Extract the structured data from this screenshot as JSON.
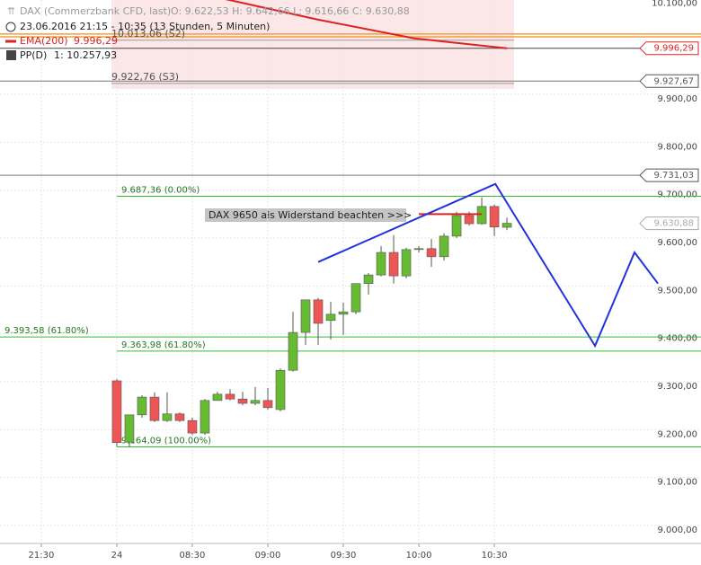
{
  "chart_data": {
    "type": "candlestick",
    "legend": {
      "instrument": "DAX (Commerzbank CFD, last)",
      "ohlc": "O: 9.622,53  H: 9.642,66  L: 9.616,66  C: 9.630,88",
      "period": "23.06.2016 21:15 - 10:35 (13 Stunden, 5 Minuten)",
      "ema_name": "EMA(200)",
      "ema_value": "9.996,29",
      "pp_name": "PP(D)",
      "pp_value": "1: 10.257,93"
    },
    "annotation": "DAX 9650 als Widerstand beachten >>>",
    "xlim": [
      -46.4,
      232.1
    ],
    "ylim": [
      8962.5,
      10097
    ],
    "xticks": [
      {
        "value": -30,
        "label": "21:30"
      },
      {
        "value": 0,
        "label": "24"
      },
      {
        "value": 30,
        "label": "08:30"
      },
      {
        "value": 60,
        "label": "09:00"
      },
      {
        "value": 90,
        "label": "09:30"
      },
      {
        "value": 120,
        "label": "10:00"
      },
      {
        "value": 150,
        "label": "10:30"
      }
    ],
    "yticks": [
      {
        "value": 9000,
        "label": "9.000,00"
      },
      {
        "value": 9100,
        "label": "9.100,00"
      },
      {
        "value": 9200,
        "label": "9.200,00"
      },
      {
        "value": 9300,
        "label": "9.300,00"
      },
      {
        "value": 9400,
        "label": "9.400,00"
      },
      {
        "value": 9500,
        "label": "9.500,00"
      },
      {
        "value": 9600,
        "label": "9.600,00"
      },
      {
        "value": 9700,
        "label": "9.700,00"
      },
      {
        "value": 9800,
        "label": "9.800,00"
      },
      {
        "value": 9900,
        "label": "9.900,00"
      },
      {
        "value": 10100,
        "label": "10.100,00"
      }
    ],
    "x": [
      0,
      5,
      10,
      15,
      20,
      25,
      30,
      35,
      40,
      45,
      50,
      55,
      60,
      65,
      70,
      75,
      80,
      85,
      90,
      95,
      100,
      105,
      110,
      115,
      120,
      125,
      130,
      135,
      140,
      145,
      150,
      155
    ],
    "open": [
      9302,
      9174,
      9231,
      9268,
      9219,
      9233,
      9219,
      9193,
      9261,
      9274,
      9264,
      9255,
      9261,
      9242,
      9324,
      9403,
      9471,
      9428,
      9441,
      9446,
      9505,
      9523,
      9570,
      9521,
      9576,
      9578,
      9561,
      9604,
      9647,
      9630,
      9666,
      9622.53
    ],
    "high": [
      9306,
      9231,
      9272,
      9278,
      9278,
      9236,
      9225,
      9264,
      9279,
      9285,
      9279,
      9289,
      9287,
      9328,
      9446,
      9471,
      9475,
      9467,
      9465,
      9505,
      9527,
      9583,
      9606,
      9580,
      9583,
      9598,
      9610,
      9655,
      9655,
      9685,
      9670,
      9642.66
    ],
    "low": [
      9165,
      9165,
      9225,
      9216,
      9216,
      9216,
      9189,
      9189,
      9261,
      9261,
      9251,
      9251,
      9242,
      9238,
      9321,
      9377,
      9377,
      9388,
      9398,
      9441,
      9482,
      9520,
      9505,
      9516,
      9570,
      9540,
      9553,
      9600,
      9626,
      9628,
      9604,
      9616.66
    ],
    "close": [
      9173,
      9231,
      9268,
      9219,
      9233,
      9219,
      9193,
      9261,
      9274,
      9264,
      9255,
      9261,
      9246,
      9324,
      9403,
      9471,
      9422,
      9441,
      9446,
      9505,
      9523,
      9570,
      9521,
      9576,
      9578,
      9561,
      9604,
      9647,
      9630,
      9666,
      9623,
      9630.88
    ],
    "up_color": "#66bb33",
    "down_color": "#ee5555",
    "fib_color": "#33bb33",
    "fib_levels": [
      {
        "value": 9687.36,
        "label": "9.687,36 (0.00%)"
      },
      {
        "value": 9363.98,
        "label": "9.363,98 (61.80%)"
      },
      {
        "value": 9164.09,
        "label": "9.164,09 (100.00%)"
      }
    ],
    "wide_levels": [
      {
        "value": 9393.58,
        "label": "9.393,58 (61.80%)"
      }
    ],
    "pivots": [
      {
        "value": 10013.06,
        "label": "10.013,06 (S2)"
      },
      {
        "value": 9922.76,
        "label": "9.922,76 (S3)"
      }
    ],
    "price_tags": [
      {
        "value": 9996.29,
        "label": "9.996,29",
        "color": "#dd2222"
      },
      {
        "value": 9927.67,
        "label": "9.927,67",
        "color": "#555555"
      },
      {
        "value": 9731.03,
        "label": "9.731,03",
        "color": "#555555"
      },
      {
        "value": 9630.88,
        "label": "9.630,88",
        "color": "#aaaaaa"
      }
    ],
    "orange_levels": [
      10026,
      10020
    ],
    "ema": {
      "x": [
        43,
        80,
        118,
        155
      ],
      "y": [
        10099,
        10056,
        10017,
        9996.29
      ],
      "color": "#dd2222"
    },
    "resistance_mark": {
      "x": [
        120,
        145
      ],
      "y": 9650
    },
    "trend_drawing": {
      "x": [
        80,
        150.4,
        190,
        205.7,
        215
      ],
      "y": [
        9550,
        9713,
        9375,
        9570,
        9505
      ],
      "color": "#2233dd"
    }
  }
}
